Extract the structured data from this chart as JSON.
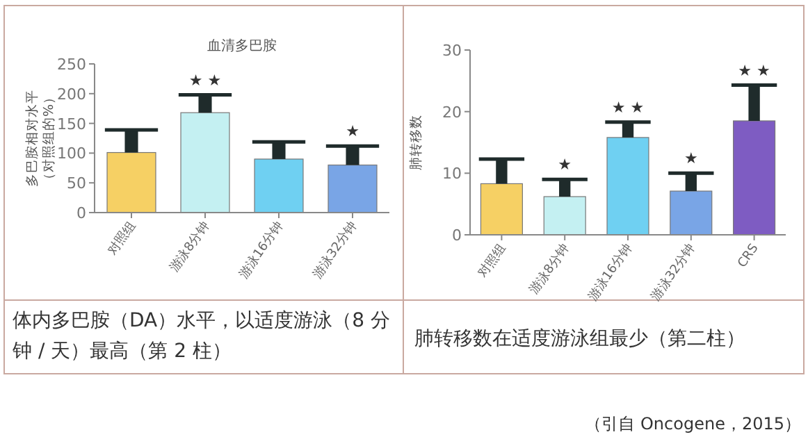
{
  "chart_data": [
    {
      "type": "bar",
      "title": "血清多巴胺",
      "ylabel": "多巴胺相对水平（对照组的%）",
      "categories": [
        "对照组",
        "游泳8分钟",
        "游泳16分钟",
        "游泳32分钟"
      ],
      "values": [
        101,
        168,
        90,
        80
      ],
      "colors": [
        "#f6d064",
        "#c4f0f2",
        "#6fd0f2",
        "#79a5e6"
      ],
      "errors": [
        [
          101,
          139
        ],
        [
          168,
          198
        ],
        [
          90,
          119
        ],
        [
          80,
          112
        ]
      ],
      "ylim": [
        0,
        250
      ],
      "yticks": [
        0,
        50,
        100,
        150,
        200,
        250
      ],
      "grid": false,
      "annotations": [
        {
          "text": "★ ★",
          "x": "游泳8分钟",
          "y": 198
        },
        {
          "text": "★",
          "x": "游泳32分钟",
          "y": 112
        },
        "体内多巴胺（DA）水平，以适度游泳（8 分钟 / 天）最高（第 2 柱）"
      ]
    },
    {
      "type": "bar",
      "ylabel": "肺转移数",
      "categories": [
        "对照组",
        "游泳8分钟",
        "游泳16分钟",
        "游泳32分钟",
        "CRS"
      ],
      "values": [
        8.3,
        6.2,
        15.8,
        7.1,
        18.5
      ],
      "colors": [
        "#f6d064",
        "#c4f0f2",
        "#6fd0f2",
        "#79a5e6",
        "#7e5cc2"
      ],
      "errors": [
        [
          8.3,
          12.3
        ],
        [
          6.2,
          9.0
        ],
        [
          15.8,
          18.3
        ],
        [
          7.1,
          10.0
        ],
        [
          18.5,
          24.3
        ]
      ],
      "ylim": [
        0,
        30
      ],
      "yticks": [
        0,
        10,
        20,
        30
      ],
      "grid": false,
      "annotations": [
        {
          "text": "★",
          "x": "游泳8分钟",
          "y": 9.0
        },
        {
          "text": "★ ★",
          "x": "游泳16分钟",
          "y": 18.3
        },
        {
          "text": "★",
          "x": "游泳32分钟",
          "y": 10.0
        },
        {
          "text": "★ ★",
          "x": "CRS",
          "y": 24.3
        },
        "肺转移数在适度游泳组最少（第二柱）",
        "（引自 Oncogene，2015）"
      ]
    }
  ]
}
